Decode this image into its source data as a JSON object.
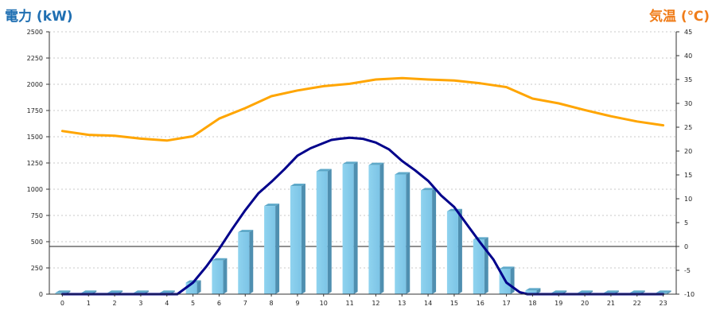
{
  "chart_data": {
    "type": "bar-line",
    "title": "",
    "ylabel_left": "電力 (kW)",
    "ylabel_right": "気温 (℃)",
    "xlim": [
      0,
      23
    ],
    "ylim_left": [
      0,
      2500
    ],
    "ylim_right": [
      -10,
      45
    ],
    "left_ticks": [
      "0",
      "250",
      "500",
      "750",
      "1000",
      "1250",
      "1500",
      "1750",
      "2000",
      "2250",
      "2500"
    ],
    "right_ticks": [
      "-10",
      "-5",
      "0",
      "5",
      "10",
      "15",
      "20",
      "25",
      "30",
      "35",
      "40",
      "45"
    ],
    "categories": [
      "0",
      "1",
      "2",
      "3",
      "4",
      "5",
      "6",
      "7",
      "8",
      "9",
      "10",
      "11",
      "12",
      "13",
      "14",
      "15",
      "16",
      "17",
      "18",
      "19",
      "20",
      "21",
      "22",
      "23"
    ],
    "grid": "horizontal-dotted",
    "series": [
      {
        "kind": "bar",
        "axis": "left",
        "color": "#87ceeb",
        "values": [
          12,
          12,
          12,
          12,
          12,
          110,
          320,
          590,
          840,
          1030,
          1170,
          1240,
          1230,
          1140,
          990,
          790,
          520,
          240,
          35,
          12,
          12,
          12,
          12,
          12
        ]
      },
      {
        "kind": "line",
        "axis": "left",
        "color": "#00008b",
        "x": [
          0,
          4,
          4.4,
          5,
          5.5,
          6,
          6.5,
          7,
          7.5,
          8,
          8.5,
          9,
          9.5,
          10,
          10.3,
          10.6,
          11,
          11.5,
          12,
          12.5,
          13,
          13.5,
          14,
          14.5,
          15,
          15.5,
          16,
          16.5,
          17,
          17.5,
          17.8,
          18,
          18.5,
          23
        ],
        "values": [
          0,
          0,
          0,
          110,
          260,
          430,
          620,
          800,
          960,
          1070,
          1190,
          1320,
          1390,
          1440,
          1470,
          1480,
          1490,
          1480,
          1445,
          1380,
          1270,
          1180,
          1080,
          940,
          830,
          660,
          490,
          330,
          110,
          20,
          0,
          0,
          0,
          0
        ]
      },
      {
        "kind": "line",
        "axis": "right",
        "color": "#ffa500",
        "x": [
          0,
          1,
          2,
          3,
          4,
          5,
          6,
          7,
          8,
          9,
          10,
          11,
          12,
          13,
          14,
          15,
          16,
          17,
          18,
          19,
          20,
          21,
          22,
          23
        ],
        "values": [
          24.2,
          23.4,
          23.2,
          22.6,
          22.2,
          23.1,
          26.8,
          29.0,
          31.5,
          32.7,
          33.6,
          34.1,
          35.0,
          35.3,
          35.0,
          34.8,
          34.2,
          33.4,
          31.0,
          30.0,
          28.6,
          27.3,
          26.2,
          25.4
        ]
      }
    ]
  }
}
